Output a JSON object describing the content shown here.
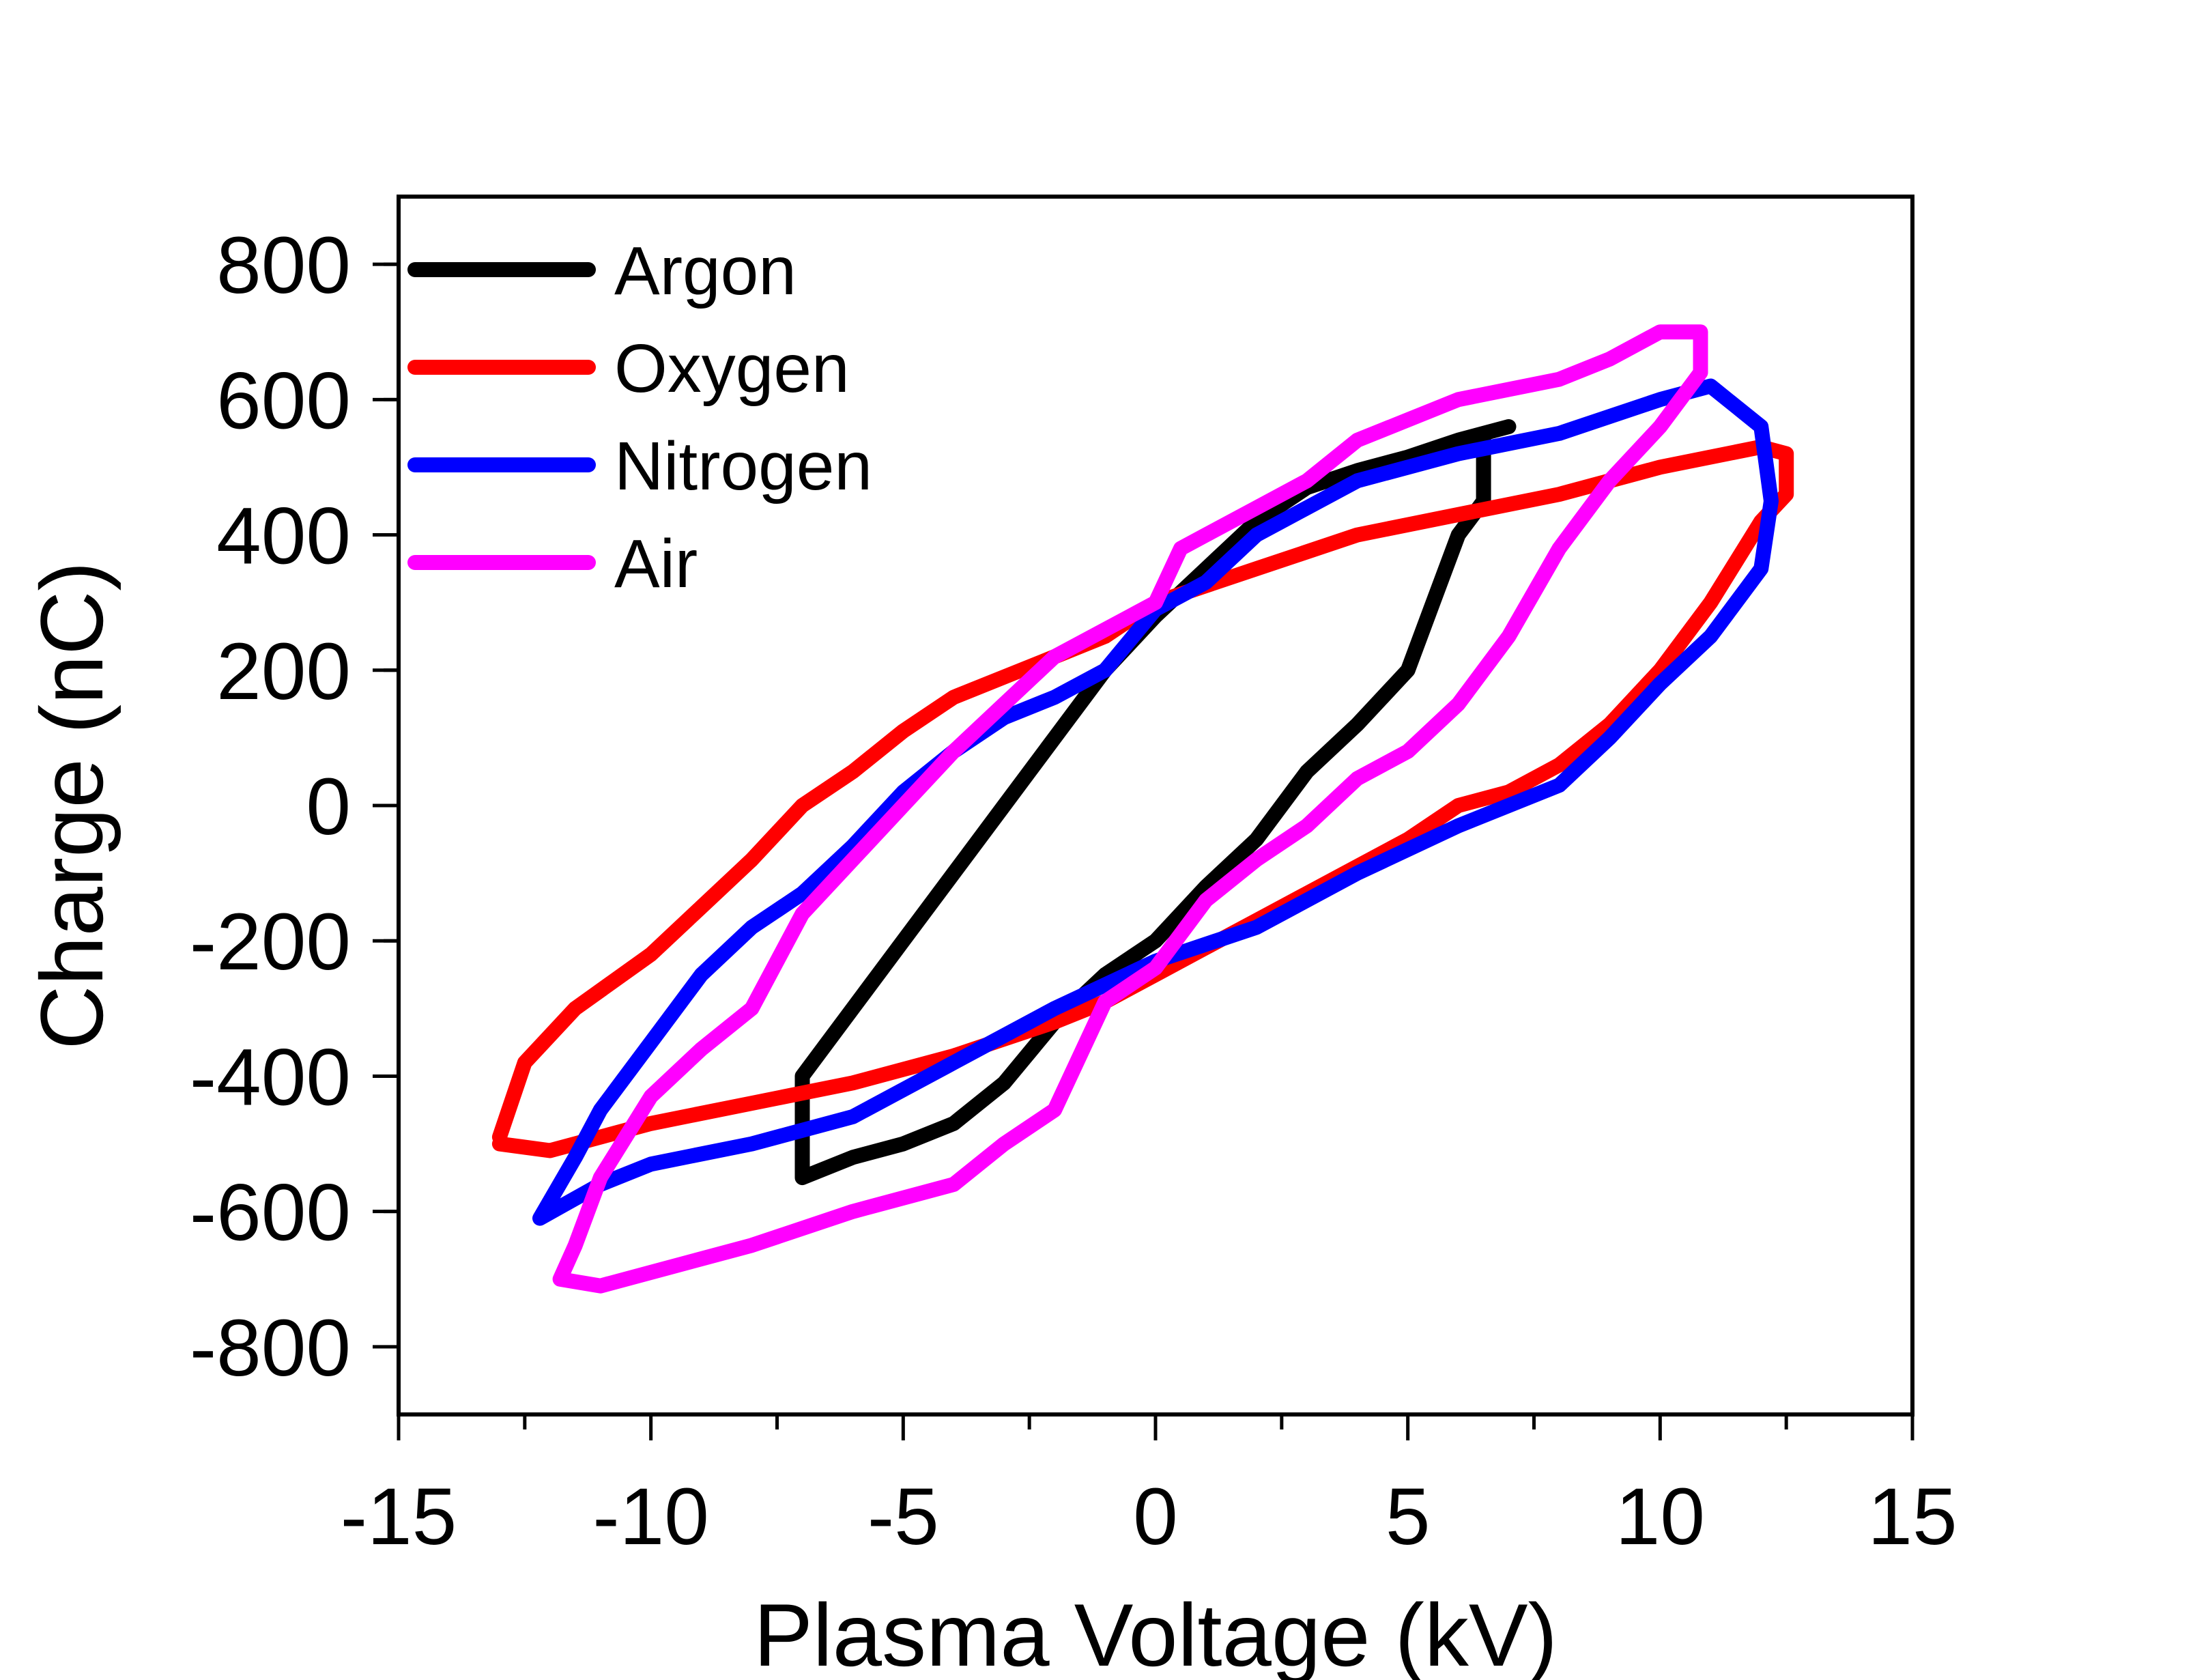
{
  "chart_data": {
    "type": "line",
    "xlabel": "Plasma Voltage (kV)",
    "ylabel": "Charge (nC)",
    "xlim": [
      -15,
      15
    ],
    "ylim": [
      -900,
      900
    ],
    "x_ticks": [
      -15,
      -10,
      -5,
      0,
      5,
      10,
      15
    ],
    "x_tick_labels": [
      "-15",
      "-10",
      "-5",
      "0",
      "5",
      "10",
      "15"
    ],
    "y_ticks": [
      -800,
      -600,
      -400,
      -200,
      0,
      200,
      400,
      600,
      800
    ],
    "y_tick_labels": [
      "-800",
      "-600",
      "-400",
      "-200",
      "0",
      "200",
      "400",
      "600",
      "800"
    ],
    "grid": false,
    "legend_position": "top-left",
    "series": [
      {
        "name": "Argon",
        "color": "#000000",
        "points": [
          [
            -7.0,
            -550
          ],
          [
            -7.0,
            -400
          ],
          [
            -6.0,
            -300
          ],
          [
            -5.0,
            -200
          ],
          [
            -4.0,
            -100
          ],
          [
            -3.0,
            0
          ],
          [
            -2.0,
            100
          ],
          [
            -1.0,
            200
          ],
          [
            0.0,
            280
          ],
          [
            1.0,
            350
          ],
          [
            2.0,
            420
          ],
          [
            3.0,
            470
          ],
          [
            4.0,
            495
          ],
          [
            5.0,
            515
          ],
          [
            6.0,
            540
          ],
          [
            7.0,
            560
          ],
          [
            6.5,
            550
          ],
          [
            6.5,
            450
          ],
          [
            6.0,
            400
          ],
          [
            5.5,
            300
          ],
          [
            5.0,
            200
          ],
          [
            4.0,
            120
          ],
          [
            3.0,
            50
          ],
          [
            2.0,
            -50
          ],
          [
            1.0,
            -120
          ],
          [
            0.0,
            -200
          ],
          [
            -1.0,
            -250
          ],
          [
            -2.0,
            -320
          ],
          [
            -3.0,
            -410
          ],
          [
            -4.0,
            -470
          ],
          [
            -5.0,
            -500
          ],
          [
            -6.0,
            -520
          ],
          [
            -7.0,
            -550
          ]
        ]
      },
      {
        "name": "Oxygen",
        "color": "#ff0000",
        "points": [
          [
            -13.0,
            -490
          ],
          [
            -12.5,
            -380
          ],
          [
            -11.5,
            -300
          ],
          [
            -10.0,
            -220
          ],
          [
            -9.0,
            -150
          ],
          [
            -8.0,
            -80
          ],
          [
            -7.0,
            0
          ],
          [
            -6.0,
            50
          ],
          [
            -5.0,
            110
          ],
          [
            -4.0,
            160
          ],
          [
            -3.0,
            190
          ],
          [
            -2.0,
            220
          ],
          [
            -1.0,
            250
          ],
          [
            0.0,
            300
          ],
          [
            2.0,
            350
          ],
          [
            4.0,
            400
          ],
          [
            6.0,
            430
          ],
          [
            8.0,
            460
          ],
          [
            10.0,
            500
          ],
          [
            12.0,
            530
          ],
          [
            12.5,
            520
          ],
          [
            12.5,
            460
          ],
          [
            12.0,
            420
          ],
          [
            11.0,
            300
          ],
          [
            10.0,
            200
          ],
          [
            9.0,
            120
          ],
          [
            8.0,
            60
          ],
          [
            7.0,
            20
          ],
          [
            6.0,
            0
          ],
          [
            5.0,
            -50
          ],
          [
            4.0,
            -90
          ],
          [
            3.0,
            -130
          ],
          [
            2.0,
            -170
          ],
          [
            1.0,
            -210
          ],
          [
            0.0,
            -250
          ],
          [
            -1.0,
            -290
          ],
          [
            -2.0,
            -320
          ],
          [
            -4.0,
            -370
          ],
          [
            -6.0,
            -410
          ],
          [
            -8.0,
            -440
          ],
          [
            -10.0,
            -470
          ],
          [
            -12.0,
            -510
          ],
          [
            -13.0,
            -500
          ]
        ]
      },
      {
        "name": "Nitrogen",
        "color": "#0000ff",
        "points": [
          [
            -12.2,
            -610
          ],
          [
            -11.5,
            -520
          ],
          [
            -11.0,
            -450
          ],
          [
            -10.0,
            -350
          ],
          [
            -9.0,
            -250
          ],
          [
            -8.0,
            -180
          ],
          [
            -7.0,
            -130
          ],
          [
            -6.0,
            -60
          ],
          [
            -5.0,
            20
          ],
          [
            -4.0,
            80
          ],
          [
            -3.0,
            130
          ],
          [
            -2.0,
            160
          ],
          [
            -1.0,
            200
          ],
          [
            0.0,
            290
          ],
          [
            1.0,
            330
          ],
          [
            2.0,
            400
          ],
          [
            3.0,
            440
          ],
          [
            4.0,
            480
          ],
          [
            6.0,
            520
          ],
          [
            8.0,
            550
          ],
          [
            10.0,
            600
          ],
          [
            11.0,
            620
          ],
          [
            12.0,
            560
          ],
          [
            12.2,
            450
          ],
          [
            12.0,
            350
          ],
          [
            11.0,
            250
          ],
          [
            10.0,
            180
          ],
          [
            9.0,
            100
          ],
          [
            8.0,
            30
          ],
          [
            6.0,
            -30
          ],
          [
            4.0,
            -100
          ],
          [
            2.0,
            -180
          ],
          [
            0.0,
            -230
          ],
          [
            -2.0,
            -300
          ],
          [
            -4.0,
            -380
          ],
          [
            -6.0,
            -460
          ],
          [
            -8.0,
            -500
          ],
          [
            -10.0,
            -530
          ],
          [
            -11.0,
            -560
          ],
          [
            -12.2,
            -610
          ]
        ]
      },
      {
        "name": "Air",
        "color": "#ff00ff",
        "points": [
          [
            -11.8,
            -700
          ],
          [
            -11.5,
            -650
          ],
          [
            -11.0,
            -550
          ],
          [
            -10.0,
            -430
          ],
          [
            -9.0,
            -360
          ],
          [
            -8.0,
            -300
          ],
          [
            -7.0,
            -160
          ],
          [
            -6.0,
            -80
          ],
          [
            -5.0,
            0
          ],
          [
            -4.0,
            80
          ],
          [
            -3.0,
            150
          ],
          [
            -2.0,
            220
          ],
          [
            -1.0,
            260
          ],
          [
            0.0,
            300
          ],
          [
            0.5,
            380
          ],
          [
            1.0,
            400
          ],
          [
            2.0,
            440
          ],
          [
            3.0,
            480
          ],
          [
            4.0,
            540
          ],
          [
            5.0,
            570
          ],
          [
            6.0,
            600
          ],
          [
            8.0,
            630
          ],
          [
            9.0,
            660
          ],
          [
            10.0,
            700
          ],
          [
            10.8,
            700
          ],
          [
            10.8,
            640
          ],
          [
            10.0,
            560
          ],
          [
            9.0,
            480
          ],
          [
            8.0,
            380
          ],
          [
            7.0,
            250
          ],
          [
            6.0,
            150
          ],
          [
            5.0,
            80
          ],
          [
            4.0,
            40
          ],
          [
            3.0,
            -30
          ],
          [
            2.0,
            -80
          ],
          [
            1.0,
            -140
          ],
          [
            0.0,
            -240
          ],
          [
            -1.0,
            -290
          ],
          [
            -2.0,
            -450
          ],
          [
            -3.0,
            -500
          ],
          [
            -4.0,
            -560
          ],
          [
            -6.0,
            -600
          ],
          [
            -8.0,
            -650
          ],
          [
            -10.0,
            -690
          ],
          [
            -11.0,
            -710
          ],
          [
            -11.8,
            -700
          ]
        ]
      }
    ]
  }
}
